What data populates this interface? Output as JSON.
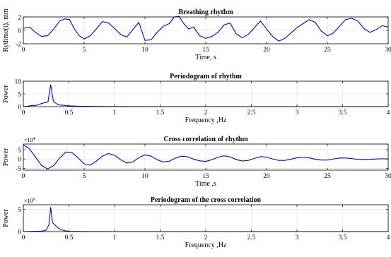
{
  "chart_data": [
    {
      "type": "line",
      "title": "Breathing rhythm",
      "xlabel": "Time, s",
      "ylabel": "Rythme(t), mm",
      "xlim": [
        0,
        30
      ],
      "ylim": [
        -2,
        2
      ],
      "xticks": [
        "0",
        "5",
        "10",
        "15",
        "20",
        "25",
        "30"
      ],
      "yticks": [
        "-2",
        "0",
        "2"
      ],
      "grid": true,
      "color": "#0000cc",
      "x": [
        0,
        0.5,
        1,
        1.5,
        2,
        2.5,
        3,
        3.4,
        3.8,
        4.2,
        4.6,
        5,
        5.5,
        6,
        6.5,
        7,
        7.5,
        8,
        8.5,
        9,
        9.5,
        10,
        10.5,
        11,
        11.5,
        12,
        12.4,
        12.8,
        13.2,
        13.6,
        14,
        14.5,
        15,
        15.5,
        16,
        16.5,
        17,
        17.5,
        18,
        18.5,
        19,
        19.5,
        20,
        20.5,
        21,
        21.5,
        22,
        22.5,
        23,
        23.5,
        24,
        24.5,
        25,
        25.5,
        26,
        26.5,
        27,
        27.5,
        28,
        28.5,
        29,
        29.5,
        30
      ],
      "values": [
        0.3,
        0.5,
        -0.3,
        -0.9,
        -0.8,
        0.2,
        1.4,
        1.7,
        1.6,
        0.2,
        -0.8,
        -1.3,
        -0.8,
        0.2,
        1.3,
        1.1,
        0.3,
        -0.6,
        -1.0,
        0.1,
        1.2,
        -1.5,
        -1.4,
        -0.3,
        0.6,
        1.0,
        2.0,
        2.1,
        1.0,
        0.2,
        0.5,
        -0.8,
        -1.2,
        -0.9,
        -0.3,
        0.8,
        1.1,
        -0.5,
        -1.1,
        -0.6,
        0.4,
        1.4,
        0.2,
        -0.9,
        -1.6,
        -1.2,
        -0.4,
        0.4,
        1.0,
        1.6,
        1.2,
        -0.1,
        -0.8,
        -0.4,
        0.6,
        1.6,
        1.8,
        1.4,
        0.3,
        -0.3,
        0.1,
        0.7,
        0.5
      ]
    },
    {
      "type": "line",
      "title": "Periodogram of rhythm",
      "xlabel": "Frequency ,Hz",
      "ylabel": "Power",
      "xlim": [
        0,
        4
      ],
      "ylim": [
        0,
        10
      ],
      "xticks": [
        "0",
        "0.5",
        "1",
        "1.5",
        "2",
        "2.5",
        "3",
        "3.5",
        "4"
      ],
      "yticks": [
        "0",
        "5",
        "10"
      ],
      "grid": true,
      "color": "#0000cc",
      "x": [
        0,
        0.03,
        0.07,
        0.1,
        0.13,
        0.17,
        0.2,
        0.23,
        0.27,
        0.3,
        0.33,
        0.37,
        0.4,
        0.45,
        0.5,
        0.6,
        0.8,
        1.0,
        1.5,
        2,
        2.5,
        3,
        3.5,
        4
      ],
      "values": [
        0,
        0.1,
        0.3,
        0.5,
        0.4,
        0.8,
        1.2,
        1.5,
        1.8,
        8.6,
        2.0,
        1.0,
        0.6,
        0.5,
        0.3,
        0.15,
        0.05,
        0.02,
        0,
        0,
        0,
        0,
        0,
        0
      ]
    },
    {
      "type": "line",
      "title": "Cross correlation of rhythm",
      "xlabel": "Time ,s",
      "ylabel": "Power",
      "y_exponent": "×10^4",
      "xlim": [
        0,
        30
      ],
      "ylim": [
        -6,
        8
      ],
      "xticks": [
        "0",
        "5",
        "10",
        "15",
        "20",
        "25",
        "30"
      ],
      "yticks": [
        "-5",
        "0",
        "5"
      ],
      "grid": true,
      "color": "#0000cc",
      "x": [
        0,
        0.5,
        1,
        1.5,
        2,
        2.5,
        3,
        3.5,
        4,
        4.5,
        5,
        5.5,
        6,
        6.5,
        7,
        7.5,
        8,
        8.5,
        9,
        9.5,
        10,
        10.5,
        11,
        11.5,
        12,
        12.5,
        13,
        13.5,
        14,
        14.5,
        15,
        15.5,
        16,
        16.5,
        17,
        17.5,
        18,
        18.5,
        19,
        19.5,
        20,
        20.5,
        21,
        21.5,
        22,
        22.5,
        23,
        23.5,
        24,
        24.5,
        25,
        25.5,
        26,
        26.5,
        27,
        27.5,
        28,
        28.5,
        29,
        29.5,
        30
      ],
      "values": [
        7.6,
        5.5,
        1.0,
        -3.5,
        -5.4,
        -3.5,
        0.6,
        3.7,
        3.4,
        0.6,
        -2.6,
        -3.3,
        -1.2,
        1.5,
        2.9,
        2.0,
        -0.4,
        -2.2,
        -1.6,
        0.7,
        2.2,
        1.5,
        -0.4,
        -1.6,
        -1.2,
        0.4,
        1.5,
        1.2,
        -0.1,
        -1.0,
        -1.3,
        -0.4,
        0.9,
        1.7,
        1.1,
        -0.3,
        -1.1,
        -0.8,
        0.3,
        1.2,
        1.0,
        0,
        -0.8,
        -0.8,
        -0.1,
        0.6,
        0.9,
        0.6,
        -0.1,
        -0.6,
        -0.6,
        0,
        0.5,
        0.5,
        0.2,
        -0.2,
        -0.3,
        -0.2,
        0,
        0.1,
        0
      ]
    },
    {
      "type": "line",
      "title": "Periodogram of the cross correlation",
      "xlabel": "Frequency ,Hz",
      "ylabel": "Power",
      "y_exponent": "×10^9",
      "xlim": [
        0,
        4
      ],
      "ylim": [
        0,
        6
      ],
      "xticks": [
        "0",
        "0.5",
        "1",
        "1.5",
        "2",
        "2.5",
        "3",
        "3.5",
        "4"
      ],
      "yticks": [
        "0",
        "5"
      ],
      "grid": true,
      "color": "#0000cc",
      "x": [
        0,
        0.1,
        0.2,
        0.25,
        0.28,
        0.3,
        0.32,
        0.35,
        0.4,
        0.45,
        0.5,
        0.7,
        1,
        2,
        3,
        4
      ],
      "values": [
        0,
        0.05,
        0.1,
        0.3,
        1.5,
        5.4,
        2.0,
        1.4,
        0.5,
        0.2,
        0.05,
        0.02,
        0,
        0,
        0,
        0
      ]
    }
  ]
}
